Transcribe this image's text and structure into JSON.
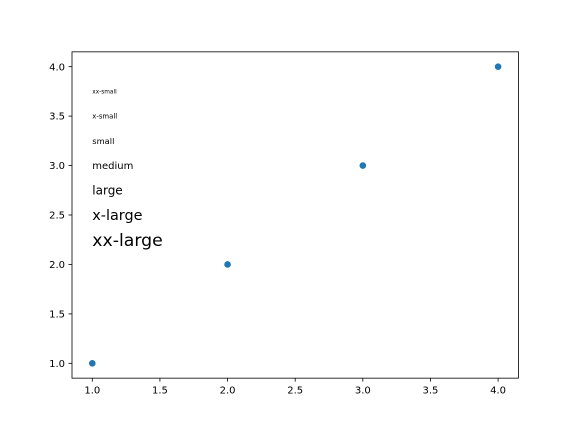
{
  "chart_data": {
    "type": "scatter",
    "title": "",
    "xlabel": "",
    "ylabel": "",
    "xlim": [
      0.85,
      4.15
    ],
    "ylim": [
      0.85,
      4.15
    ],
    "grid": false,
    "series": [
      {
        "x": [
          1,
          2,
          3,
          4
        ],
        "y": [
          1,
          2,
          3,
          4
        ],
        "color": "#1f77b4"
      }
    ],
    "x_ticks": [
      {
        "value": 1.0,
        "label": "1.0"
      },
      {
        "value": 1.5,
        "label": "1.5"
      },
      {
        "value": 2.0,
        "label": "2.0"
      },
      {
        "value": 2.5,
        "label": "2.5"
      },
      {
        "value": 3.0,
        "label": "3.0"
      },
      {
        "value": 3.5,
        "label": "3.5"
      },
      {
        "value": 4.0,
        "label": "4.0"
      }
    ],
    "y_ticks": [
      {
        "value": 1.0,
        "label": "1.0"
      },
      {
        "value": 1.5,
        "label": "1.5"
      },
      {
        "value": 2.0,
        "label": "2.0"
      },
      {
        "value": 2.5,
        "label": "2.5"
      },
      {
        "value": 3.0,
        "label": "3.0"
      },
      {
        "value": 3.5,
        "label": "3.5"
      },
      {
        "value": 4.0,
        "label": "4.0"
      }
    ],
    "annotations": [
      {
        "text": "xx-small",
        "x": 1.0,
        "y": 3.75
      },
      {
        "text": "x-small",
        "x": 1.0,
        "y": 3.5
      },
      {
        "text": "small",
        "x": 1.0,
        "y": 3.25
      },
      {
        "text": "medium",
        "x": 1.0,
        "y": 3.0
      },
      {
        "text": "large",
        "x": 1.0,
        "y": 2.75
      },
      {
        "text": "x-large",
        "x": 1.0,
        "y": 2.5
      },
      {
        "text": "xx-large",
        "x": 1.0,
        "y": 2.25
      }
    ]
  }
}
